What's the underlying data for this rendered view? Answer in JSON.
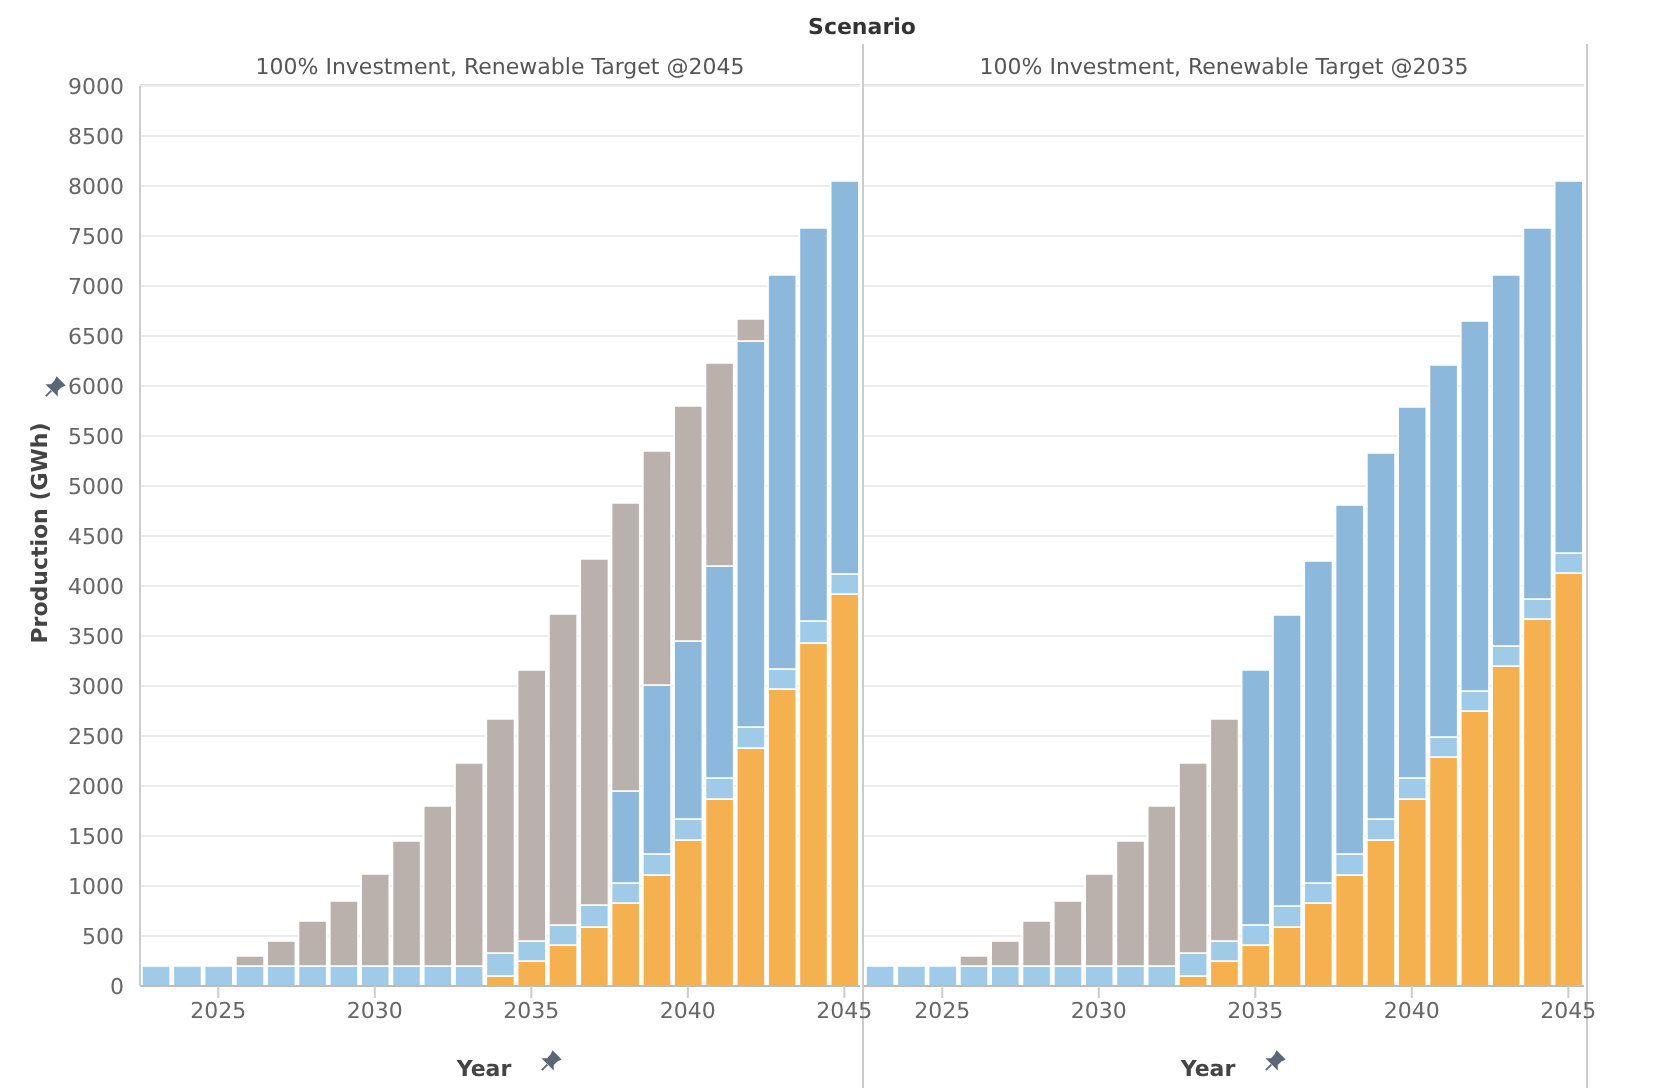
{
  "chart_data": [
    {
      "type": "bar",
      "title": "Scenario",
      "subtitle": "100% Investment, Renewable Target @2045",
      "xlabel": "Year",
      "ylabel": "Production (GWh)",
      "stacked": true,
      "grid": "y",
      "x": [
        2023,
        2024,
        2025,
        2026,
        2027,
        2028,
        2029,
        2030,
        2031,
        2032,
        2033,
        2034,
        2035,
        2036,
        2037,
        2038,
        2039,
        2040,
        2041,
        2042,
        2043,
        2044,
        2045
      ],
      "xlim": [
        2022.5,
        2045.5
      ],
      "xticks": [
        2025,
        2030,
        2035,
        2040,
        2045
      ],
      "ylim": [
        0,
        9000
      ],
      "yticks": [
        0,
        500,
        1000,
        1500,
        2000,
        2500,
        3000,
        3500,
        4000,
        4500,
        5000,
        5500,
        6000,
        6500,
        7000,
        7500,
        8000,
        8500,
        9000
      ],
      "series": [
        {
          "color": "#f5b04f",
          "values": [
            0,
            0,
            0,
            0,
            0,
            0,
            0,
            0,
            0,
            0,
            0,
            100,
            250,
            410,
            590,
            830,
            1110,
            1460,
            1870,
            2380,
            2970,
            3430,
            3920
          ]
        },
        {
          "color": "#a0cbe8",
          "values": [
            200,
            200,
            200,
            200,
            200,
            200,
            200,
            200,
            200,
            200,
            200,
            230,
            200,
            200,
            220,
            200,
            210,
            210,
            210,
            210,
            200,
            220,
            200
          ]
        },
        {
          "color": "#8bb8db",
          "values": [
            0,
            0,
            0,
            0,
            0,
            0,
            0,
            0,
            0,
            0,
            0,
            0,
            0,
            0,
            0,
            920,
            1690,
            1780,
            2120,
            3860,
            3940,
            3930,
            3930
          ]
        },
        {
          "color": "#bab0ac",
          "values": [
            0,
            0,
            0,
            100,
            250,
            450,
            650,
            920,
            1250,
            1600,
            2030,
            2340,
            2710,
            3110,
            3460,
            2880,
            2340,
            2350,
            2030,
            220,
            0,
            0,
            0
          ]
        }
      ]
    },
    {
      "type": "bar",
      "subtitle": "100% Investment, Renewable Target @2035",
      "xlabel": "Year",
      "stacked": true,
      "grid": "y",
      "tick_labels": "x",
      "x": [
        2023,
        2024,
        2025,
        2026,
        2027,
        2028,
        2029,
        2030,
        2031,
        2032,
        2033,
        2034,
        2035,
        2036,
        2037,
        2038,
        2039,
        2040,
        2041,
        2042,
        2043,
        2044,
        2045
      ],
      "xlim": [
        2022.5,
        2045.5
      ],
      "xticks": [
        2025,
        2030,
        2035,
        2040,
        2045
      ],
      "ylim": [
        0,
        9000
      ],
      "yticks": [
        0,
        500,
        1000,
        1500,
        2000,
        2500,
        3000,
        3500,
        4000,
        4500,
        5000,
        5500,
        6000,
        6500,
        7000,
        7500,
        8000,
        8500,
        9000
      ],
      "series": [
        {
          "color": "#f5b04f",
          "values": [
            0,
            0,
            0,
            0,
            0,
            0,
            0,
            0,
            0,
            0,
            100,
            250,
            410,
            590,
            830,
            1110,
            1460,
            1870,
            2290,
            2750,
            3200,
            3670,
            4130
          ]
        },
        {
          "color": "#a0cbe8",
          "values": [
            200,
            200,
            200,
            200,
            200,
            200,
            200,
            200,
            200,
            200,
            230,
            200,
            200,
            210,
            200,
            210,
            210,
            210,
            200,
            200,
            200,
            200,
            200
          ]
        },
        {
          "color": "#8bb8db",
          "values": [
            0,
            0,
            0,
            0,
            0,
            0,
            0,
            0,
            0,
            0,
            0,
            0,
            2550,
            2910,
            3220,
            3490,
            3660,
            3710,
            3720,
            3700,
            3710,
            3710,
            3720
          ]
        },
        {
          "color": "#bab0ac",
          "values": [
            0,
            0,
            0,
            100,
            250,
            450,
            650,
            920,
            1250,
            1600,
            1900,
            2220,
            0,
            0,
            0,
            0,
            0,
            0,
            0,
            0,
            0,
            0,
            0
          ]
        }
      ]
    }
  ]
}
